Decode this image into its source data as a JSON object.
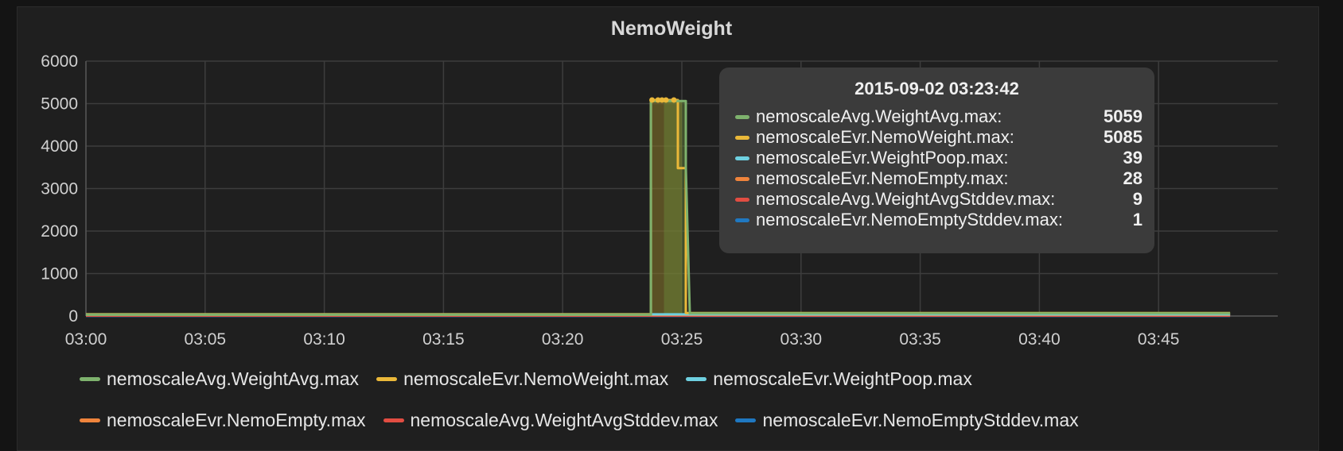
{
  "chart_data": {
    "type": "line",
    "title": "NemoWeight",
    "xlabel": "",
    "ylabel": "",
    "x_ticks": [
      "03:00",
      "03:05",
      "03:10",
      "03:15",
      "03:20",
      "03:25",
      "03:30",
      "03:35",
      "03:40",
      "03:45"
    ],
    "y_ticks": [
      "6000",
      "5000",
      "4000",
      "3000",
      "2000",
      "1000",
      "0"
    ],
    "xlim": [
      "03:00",
      "03:50"
    ],
    "ylim": [
      0,
      6000
    ],
    "grid": true,
    "legend_position": "bottom",
    "series": [
      {
        "name": "nemoscaleAvg.WeightAvg.max",
        "color": "#7eb26d",
        "points": [
          [
            "03:00",
            30
          ],
          [
            "03:23:42",
            30
          ],
          [
            "03:23:42",
            5059
          ],
          [
            "03:25:10",
            5059
          ],
          [
            "03:25:10",
            3500
          ],
          [
            "03:25:20",
            60
          ],
          [
            "03:48",
            60
          ]
        ]
      },
      {
        "name": "nemoscaleEvr.NemoWeight.max",
        "color": "#eab839",
        "points": [
          [
            "03:00",
            40
          ],
          [
            "03:23:42",
            40
          ],
          [
            "03:23:42",
            5085
          ],
          [
            "03:24:50",
            5085
          ],
          [
            "03:24:50",
            3480
          ],
          [
            "03:25:10",
            3480
          ],
          [
            "03:25:10",
            70
          ],
          [
            "03:48",
            70
          ]
        ]
      },
      {
        "name": "nemoscaleEvr.WeightPoop.max",
        "color": "#6ed0e0",
        "points": [
          [
            "03:00",
            39
          ],
          [
            "03:48",
            39
          ]
        ]
      },
      {
        "name": "nemoscaleEvr.NemoEmpty.max",
        "color": "#ef843c",
        "points": [
          [
            "03:00",
            28
          ],
          [
            "03:48",
            28
          ]
        ]
      },
      {
        "name": "nemoscaleAvg.WeightAvgStddev.max",
        "color": "#e24d42",
        "points": [
          [
            "03:00",
            9
          ],
          [
            "03:48",
            9
          ]
        ]
      },
      {
        "name": "nemoscaleEvr.NemoEmptyStddev.max",
        "color": "#1f78c1",
        "points": [
          [
            "03:00",
            1
          ],
          [
            "03:48",
            1
          ]
        ]
      }
    ],
    "shaded_region": {
      "x_start": "03:23:42",
      "x_end": "03:25:00"
    },
    "tooltip": {
      "time": "2015-09-02 03:23:42",
      "rows": [
        {
          "name": "nemoscaleAvg.WeightAvg.max:",
          "value": "5059",
          "color": "#7eb26d"
        },
        {
          "name": "nemoscaleEvr.NemoWeight.max:",
          "value": "5085",
          "color": "#eab839"
        },
        {
          "name": "nemoscaleEvr.WeightPoop.max:",
          "value": "39",
          "color": "#6ed0e0"
        },
        {
          "name": "nemoscaleEvr.NemoEmpty.max:",
          "value": "28",
          "color": "#ef843c"
        },
        {
          "name": "nemoscaleAvg.WeightAvgStddev.max:",
          "value": "9",
          "color": "#e24d42"
        },
        {
          "name": "nemoscaleEvr.NemoEmptyStddev.max:",
          "value": "1",
          "color": "#1f78c1"
        }
      ]
    }
  }
}
